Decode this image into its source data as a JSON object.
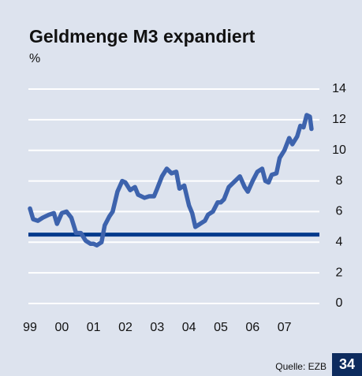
{
  "chart_data": {
    "type": "line",
    "title": "Geldmenge M3 expandiert",
    "y_unit": "%",
    "x": [
      1999.0,
      1999.1,
      1999.25,
      1999.4,
      1999.6,
      1999.75,
      1999.85,
      2000.0,
      2000.15,
      2000.3,
      2000.45,
      2000.6,
      2000.75,
      2000.9,
      2001.0,
      2001.1,
      2001.25,
      2001.35,
      2001.5,
      2001.6,
      2001.75,
      2001.9,
      2002.0,
      2002.15,
      2002.3,
      2002.4,
      2002.6,
      2002.75,
      2002.9,
      2003.0,
      2003.15,
      2003.3,
      2003.45,
      2003.6,
      2003.7,
      2003.85,
      2004.0,
      2004.1,
      2004.2,
      2004.35,
      2004.5,
      2004.6,
      2004.75,
      2004.9,
      2005.0,
      2005.1,
      2005.25,
      2005.45,
      2005.6,
      2005.75,
      2005.85,
      2006.0,
      2006.15,
      2006.3,
      2006.4,
      2006.5,
      2006.6,
      2006.75,
      2006.85,
      2007.0,
      2007.15,
      2007.25,
      2007.4,
      2007.5,
      2007.6,
      2007.7,
      2007.8,
      2007.85
    ],
    "series": [
      {
        "name": "M3",
        "color": "#3d63ad",
        "values": [
          6.2,
          5.5,
          5.4,
          5.6,
          5.8,
          5.9,
          5.2,
          5.9,
          6.0,
          5.6,
          4.6,
          4.6,
          4.1,
          3.9,
          3.9,
          3.8,
          4.0,
          5.1,
          5.7,
          6.0,
          7.3,
          8.0,
          7.9,
          7.4,
          7.6,
          7.1,
          6.9,
          7.0,
          7.0,
          7.5,
          8.3,
          8.8,
          8.5,
          8.6,
          7.5,
          7.7,
          6.4,
          5.9,
          5.0,
          5.2,
          5.4,
          5.8,
          6.0,
          6.6,
          6.6,
          6.8,
          7.6,
          8.0,
          8.3,
          7.6,
          7.3,
          8.0,
          8.6,
          8.8,
          8.0,
          7.9,
          8.4,
          8.5,
          9.5,
          10.0,
          10.8,
          10.4,
          10.9,
          11.6,
          11.5,
          12.3,
          12.2,
          11.4
        ]
      }
    ],
    "reference_line": {
      "value": 4.5,
      "color": "#003a8c"
    },
    "xlim": [
      1998.95,
      2008.1
    ],
    "xticks": [
      {
        "value": 1999,
        "label": "99"
      },
      {
        "value": 2000,
        "label": "00"
      },
      {
        "value": 2001,
        "label": "01"
      },
      {
        "value": 2002,
        "label": "02"
      },
      {
        "value": 2003,
        "label": "03"
      },
      {
        "value": 2004,
        "label": "04"
      },
      {
        "value": 2005,
        "label": "05"
      },
      {
        "value": 2006,
        "label": "06"
      },
      {
        "value": 2007,
        "label": "07"
      }
    ],
    "ylim": [
      0,
      14
    ],
    "yticks": [
      0,
      2,
      4,
      6,
      8,
      10,
      12,
      14
    ],
    "grid": true,
    "source": "Quelle: EZB",
    "page_number": "34"
  }
}
